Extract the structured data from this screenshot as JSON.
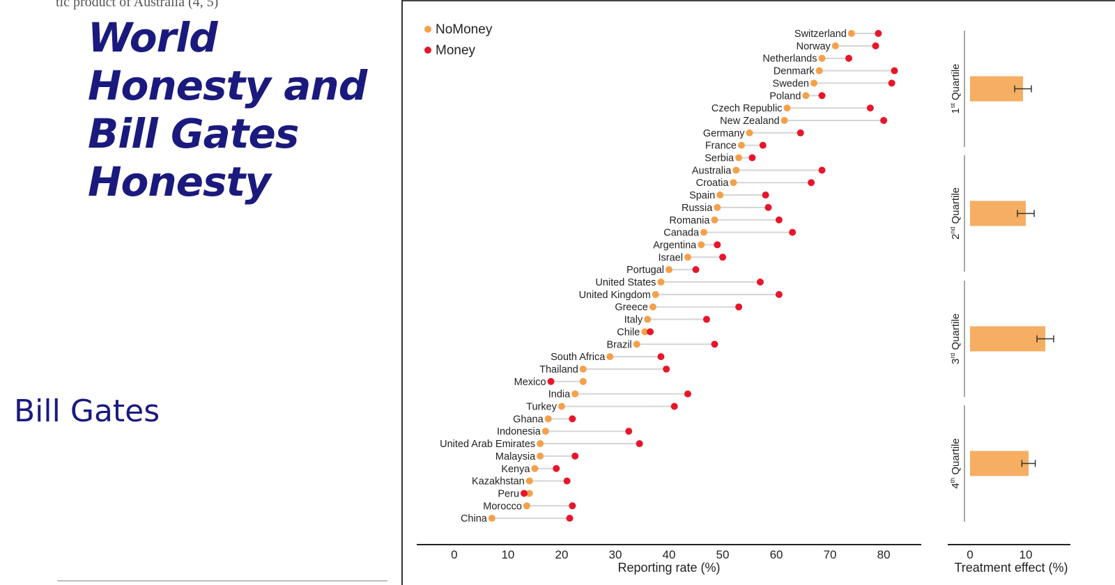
{
  "slide": {
    "snippet": "tic product of Australia (4, 5)",
    "title": "World Honesty and Bill Gates Honesty",
    "subtitle": "Bill Gates"
  },
  "chart_data": [
    {
      "type": "dumbbell",
      "xlabel": "Reporting rate (%)",
      "xlim": [
        -7,
        87
      ],
      "xticks": [
        0,
        10,
        20,
        30,
        40,
        50,
        60,
        70,
        80
      ],
      "legend": {
        "placement": "top-left",
        "items": [
          "NoMoney",
          "Money"
        ]
      },
      "colors": {
        "NoMoney": "#f5a04a",
        "Money": "#e8162a",
        "connector": "#d5d5d5"
      },
      "series": [
        {
          "name": "NoMoney",
          "values": [
            74,
            71,
            68.5,
            68,
            67,
            65.5,
            62,
            61.5,
            55,
            53.5,
            53,
            52.5,
            52,
            49.5,
            49,
            48.5,
            46.5,
            46,
            43.5,
            40,
            38.5,
            37.5,
            37,
            36,
            35.5,
            34,
            29,
            24,
            24,
            22.5,
            20,
            17.5,
            17,
            16,
            16,
            15,
            14,
            14,
            13.5,
            7
          ]
        },
        {
          "name": "Money",
          "values": [
            79,
            78.5,
            73.5,
            82,
            81.5,
            68.5,
            77.5,
            80,
            64.5,
            57.5,
            55.5,
            68.5,
            66.5,
            58,
            58.5,
            60.5,
            63,
            49,
            50,
            45,
            57,
            60.5,
            53,
            47,
            36.5,
            48.5,
            38.5,
            39.5,
            18,
            43.5,
            41,
            22,
            32.5,
            34.5,
            22.5,
            19,
            21,
            13,
            22,
            21.5
          ]
        }
      ],
      "categories": [
        "Switzerland",
        "Norway",
        "Netherlands",
        "Denmark",
        "Sweden",
        "Poland",
        "Czech Republic",
        "New Zealand",
        "Germany",
        "France",
        "Serbia",
        "Australia",
        "Croatia",
        "Spain",
        "Russia",
        "Romania",
        "Canada",
        "Argentina",
        "Israel",
        "Portugal",
        "United States",
        "United Kingdom",
        "Greece",
        "Italy",
        "Chile",
        "Brazil",
        "South Africa",
        "Thailand",
        "Mexico",
        "India",
        "Turkey",
        "Ghana",
        "Indonesia",
        "United Arab Emirates",
        "Malaysia",
        "Kenya",
        "Kazakhstan",
        "Peru",
        "Morocco",
        "China"
      ]
    },
    {
      "type": "bar",
      "orientation": "horizontal",
      "xlabel": "Treatment effect (%)",
      "xlim": [
        -4,
        18
      ],
      "xticks": [
        0,
        10
      ],
      "categories": [
        "1st Quartile",
        "2nd Quartile",
        "3rd Quartile",
        "4th Quartile"
      ],
      "category_parts": [
        {
          "num": "1",
          "sup": "st",
          "word": "Quartile"
        },
        {
          "num": "2",
          "sup": "nd",
          "word": "Quartile"
        },
        {
          "num": "3",
          "sup": "rd",
          "word": "Quartile"
        },
        {
          "num": "4",
          "sup": "th",
          "word": "Quartile"
        }
      ],
      "values": [
        9.5,
        10,
        13.5,
        10.5
      ],
      "errors": [
        1.5,
        1.5,
        1.5,
        1.2
      ],
      "colors": {
        "bar": "#f5ae62",
        "error": "#333333"
      }
    }
  ]
}
